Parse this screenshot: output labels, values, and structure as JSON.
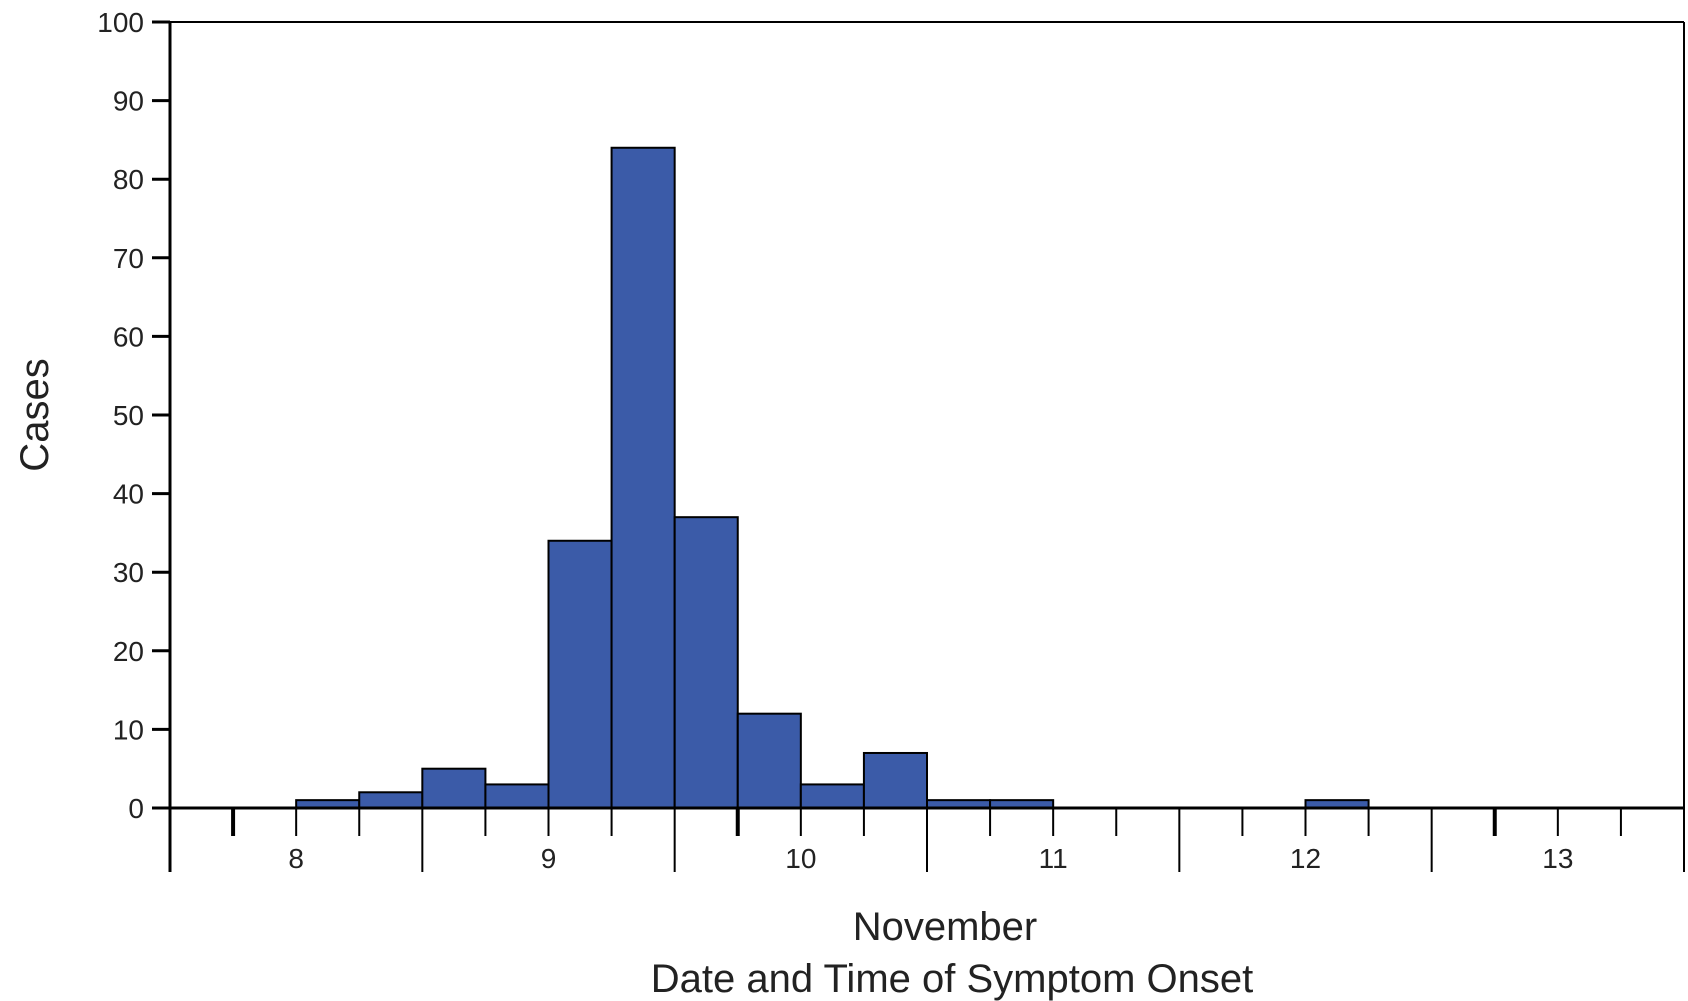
{
  "chart_data": {
    "type": "bar",
    "title": "",
    "ylabel": "Cases",
    "xlabel_line1": "November",
    "xlabel_line2": "Date and Time of Symptom Onset",
    "bin_hours": 6,
    "ylim": [
      0,
      100
    ],
    "yticks": [
      0,
      10,
      20,
      30,
      40,
      50,
      60,
      70,
      80,
      90,
      100
    ],
    "xlim_days": [
      7.5,
      13.5
    ],
    "date_tick_labels": [
      {
        "day": 8,
        "label": "8"
      },
      {
        "day": 9,
        "label": "9"
      },
      {
        "day": 10,
        "label": "10"
      },
      {
        "day": 11,
        "label": "11"
      },
      {
        "day": 12,
        "label": "12"
      },
      {
        "day": 13,
        "label": "13"
      }
    ],
    "bars": [
      {
        "start": "Nov 8 00:00",
        "value": 1
      },
      {
        "start": "Nov 8 06:00",
        "value": 2
      },
      {
        "start": "Nov 8 12:00",
        "value": 5
      },
      {
        "start": "Nov 8 18:00",
        "value": 3
      },
      {
        "start": "Nov 9 00:00",
        "value": 34
      },
      {
        "start": "Nov 9 06:00",
        "value": 84
      },
      {
        "start": "Nov 9 12:00",
        "value": 37
      },
      {
        "start": "Nov 9 18:00",
        "value": 12
      },
      {
        "start": "Nov 10 00:00",
        "value": 3
      },
      {
        "start": "Nov 10 06:00",
        "value": 7
      },
      {
        "start": "Nov 10 12:00",
        "value": 1
      },
      {
        "start": "Nov 10 18:00",
        "value": 1
      },
      {
        "start": "Nov 12 00:00",
        "value": 1
      }
    ],
    "grid": false,
    "legend": "none",
    "colors": {
      "bar_fill": "#3b5ba8",
      "bar_stroke": "#000000",
      "axis": "#000000",
      "text": "#222222"
    }
  }
}
